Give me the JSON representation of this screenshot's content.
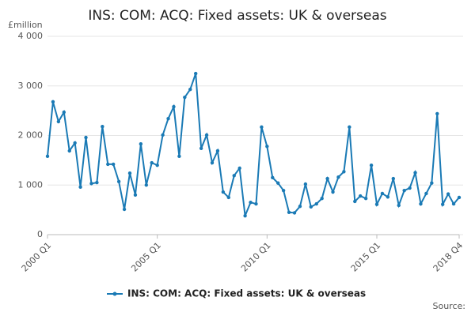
{
  "chart_data": {
    "type": "line",
    "title": "INS: COM: ACQ: Fixed assets: UK & overseas",
    "y_label": "£million",
    "source": "Source:",
    "categories": [
      "2000 Q1",
      null,
      null,
      null,
      null,
      null,
      null,
      null,
      null,
      null,
      null,
      null,
      null,
      null,
      null,
      null,
      null,
      null,
      null,
      null,
      "2005 Q1",
      null,
      null,
      null,
      null,
      null,
      null,
      null,
      null,
      null,
      null,
      null,
      null,
      null,
      null,
      null,
      null,
      null,
      null,
      null,
      "2010 Q1",
      null,
      null,
      null,
      null,
      null,
      null,
      null,
      null,
      null,
      null,
      null,
      null,
      null,
      null,
      null,
      null,
      null,
      null,
      null,
      "2015 Q1",
      null,
      null,
      null,
      null,
      null,
      null,
      null,
      null,
      null,
      null,
      null,
      null,
      null,
      null,
      "2018 Q4"
    ],
    "series": [
      {
        "name": "INS: COM: ACQ: Fixed assets: UK & overseas",
        "color": "#1a7ab5",
        "values": [
          1580,
          2680,
          2280,
          2470,
          1690,
          1850,
          960,
          1960,
          1030,
          1050,
          2180,
          1420,
          1420,
          1070,
          510,
          1240,
          800,
          1830,
          1000,
          1450,
          1400,
          2010,
          2340,
          2580,
          1580,
          2770,
          2930,
          3250,
          1740,
          2010,
          1450,
          1690,
          860,
          750,
          1190,
          1340,
          380,
          650,
          620,
          2170,
          1780,
          1150,
          1040,
          890,
          450,
          440,
          570,
          1020,
          560,
          620,
          730,
          1130,
          860,
          1160,
          1270,
          2170,
          670,
          780,
          730,
          1400,
          610,
          830,
          760,
          1130,
          590,
          890,
          940,
          1250,
          620,
          830,
          1040,
          2440,
          610,
          820,
          620,
          750
        ]
      }
    ],
    "ylim": [
      0,
      4000
    ],
    "yticks": [
      0,
      {
        "value": 1000,
        "label": "1 000"
      },
      {
        "value": 2000,
        "label": "2 000"
      },
      {
        "value": 3000,
        "label": "3 000"
      },
      {
        "value": 4000,
        "label": "4 000"
      }
    ],
    "grid": true
  }
}
